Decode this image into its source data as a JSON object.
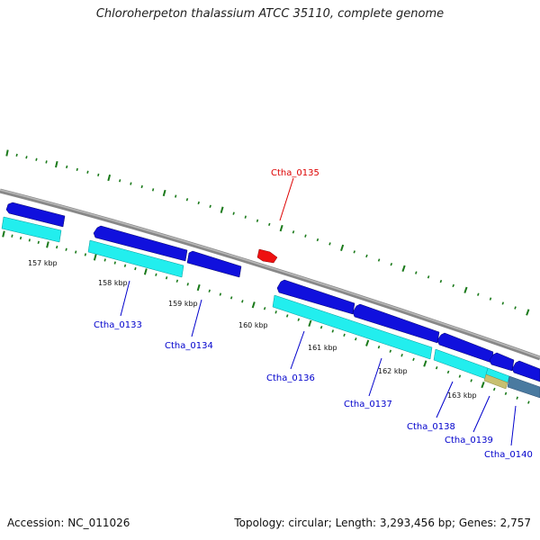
{
  "title": "Chloroherpeton thalassium ATCC 35110, complete genome",
  "footer": {
    "accession": "Accession: NC_011026",
    "summary": "Topology: circular; Length: 3,293,456 bp; Genes: 2,757"
  },
  "colors": {
    "label_normal": "#0000cc",
    "label_highlight": "#dd0000",
    "cds_forward": "#1010dd",
    "gene_row": "#22eeee",
    "highlight_gene": "#ee1111",
    "tick": "#1b7a1b",
    "backbone": "#888888",
    "rna_gene": "#c8c070",
    "other_gene": "#4a7aa0"
  },
  "kbp_ticks": [
    {
      "label": "157 kbp"
    },
    {
      "label": "158 kbp"
    },
    {
      "label": "159 kbp"
    },
    {
      "label": "160 kbp"
    },
    {
      "label": "161 kbp"
    },
    {
      "label": "162 kbp"
    },
    {
      "label": "163 kbp"
    }
  ],
  "genes": [
    {
      "id": "Ctha_0133",
      "highlight": false
    },
    {
      "id": "Ctha_0134",
      "highlight": false
    },
    {
      "id": "Ctha_0135",
      "highlight": true
    },
    {
      "id": "Ctha_0136",
      "highlight": false
    },
    {
      "id": "Ctha_0137",
      "highlight": false
    },
    {
      "id": "Ctha_0138",
      "highlight": false
    },
    {
      "id": "Ctha_0139",
      "highlight": false
    },
    {
      "id": "Ctha_0140",
      "highlight": false
    }
  ]
}
